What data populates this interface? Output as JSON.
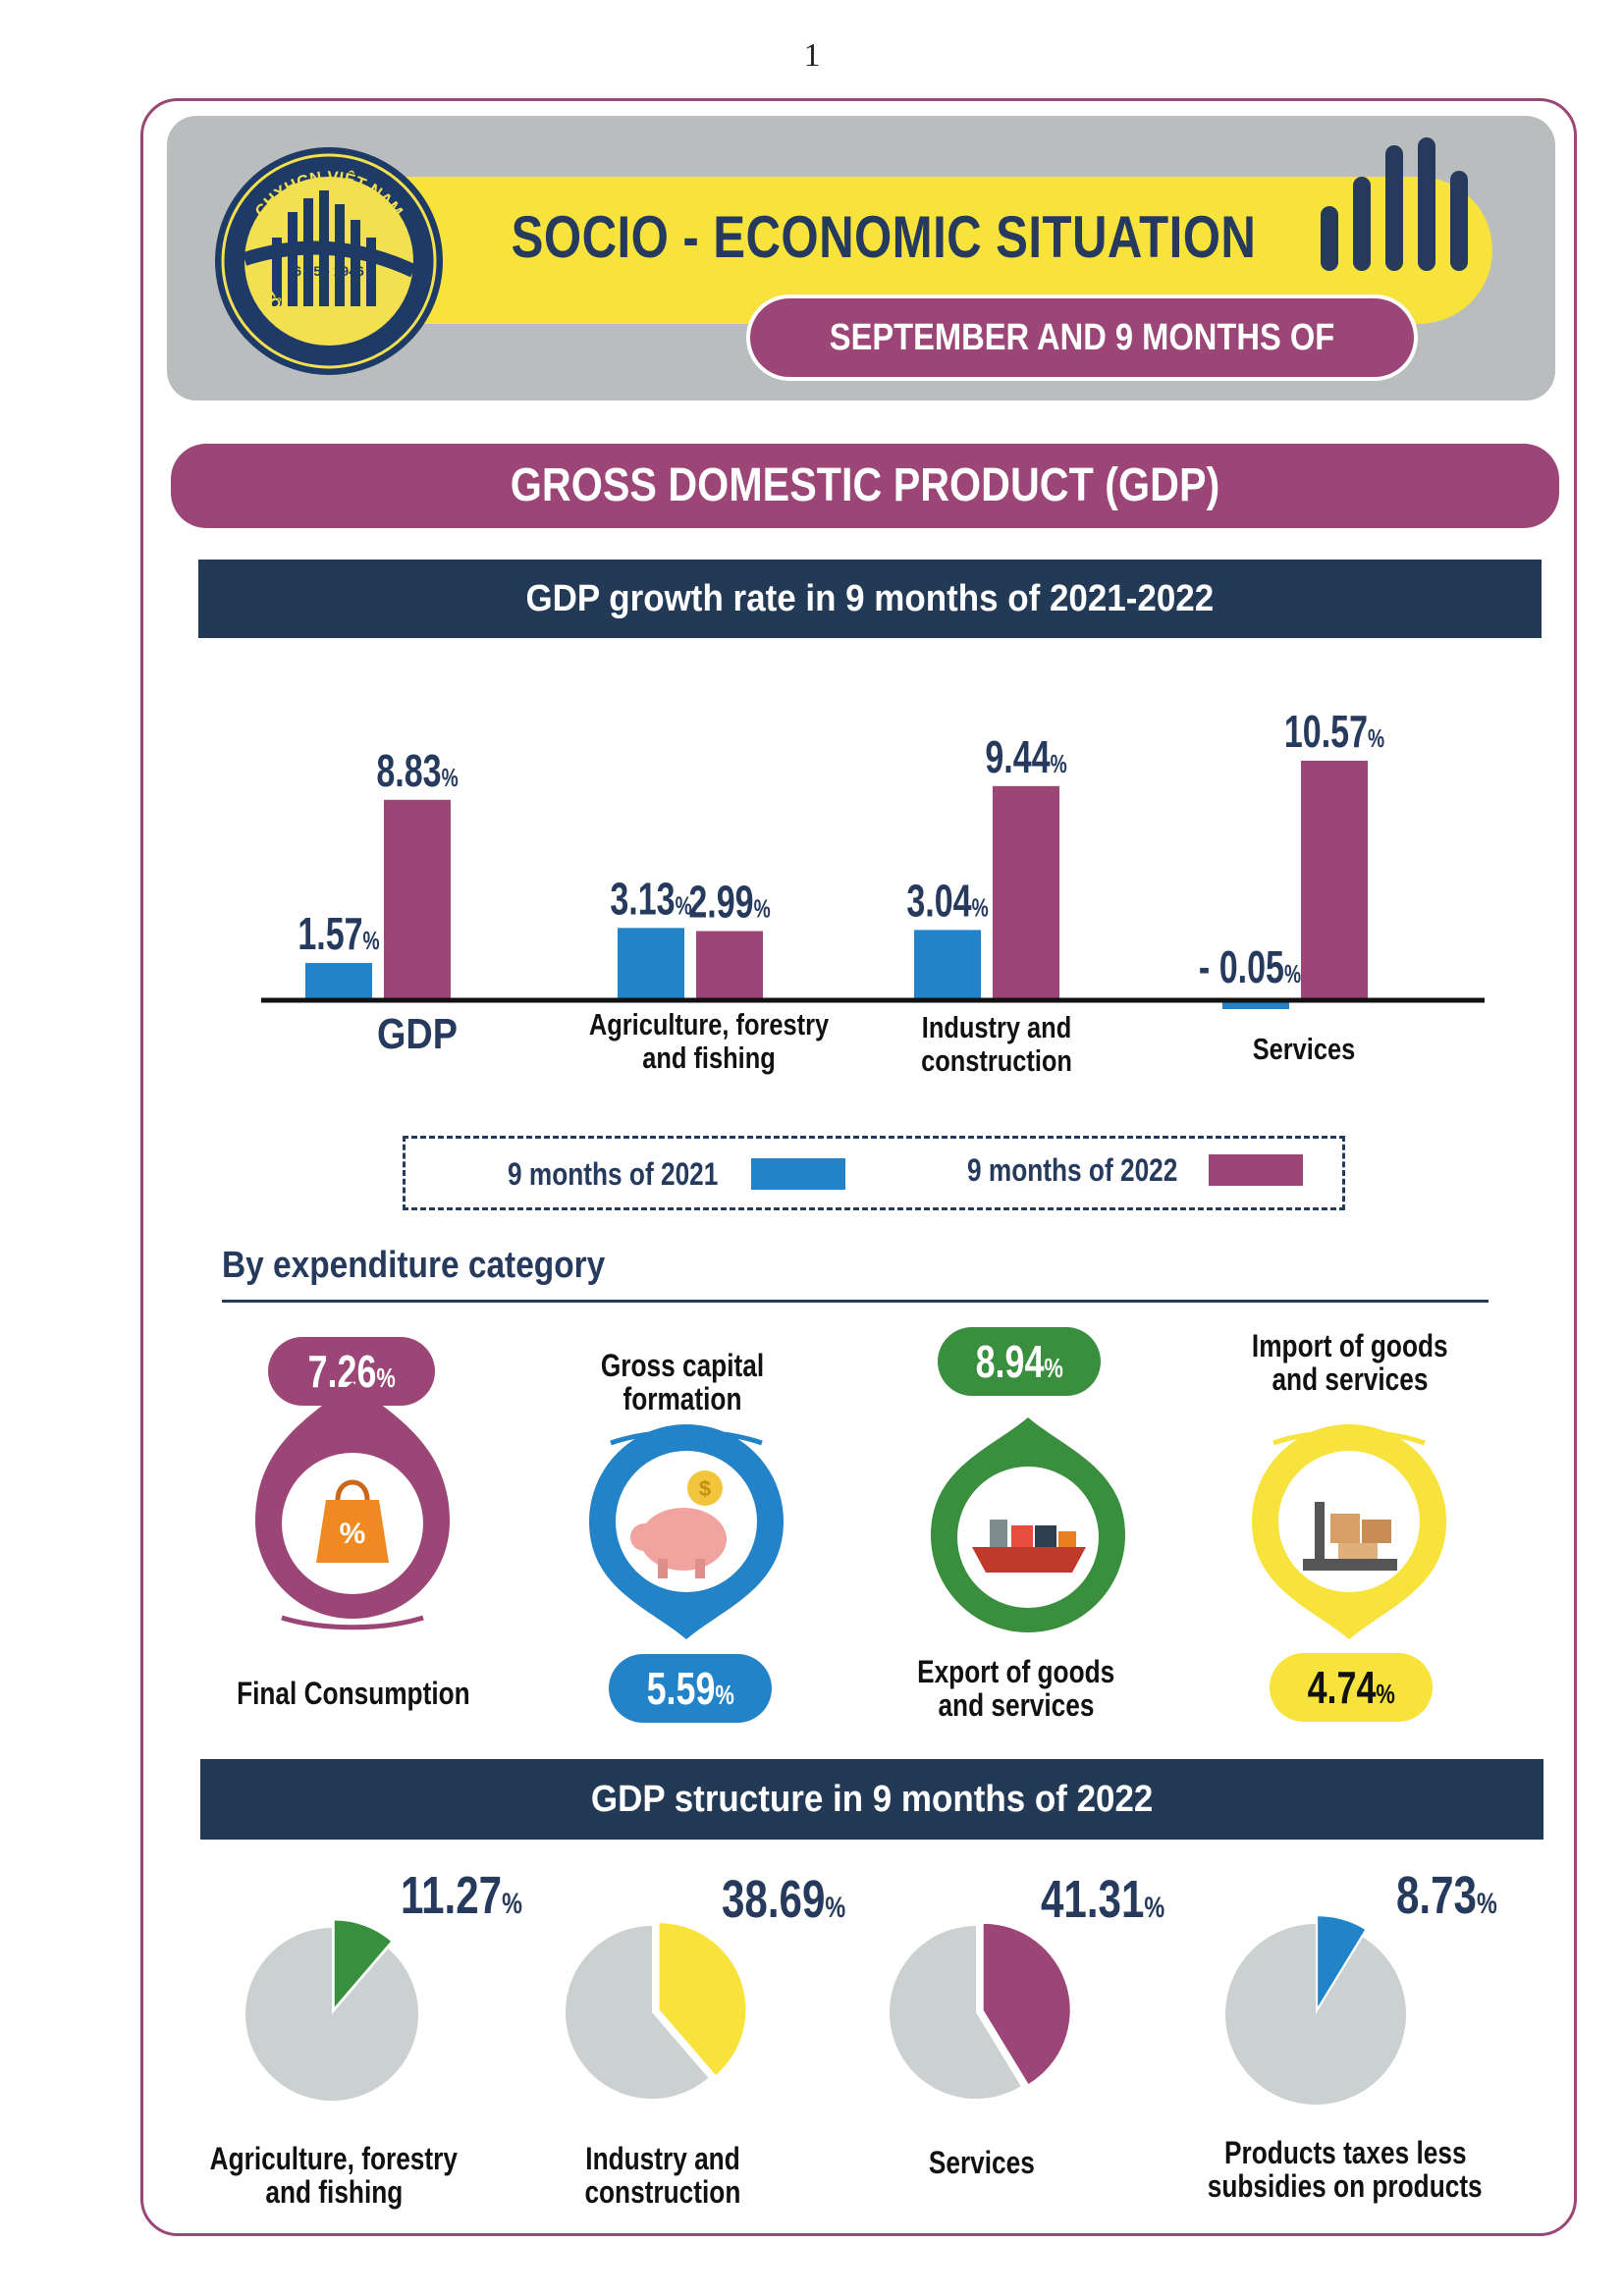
{
  "page_number": "1",
  "header": {
    "logo_top_text": "CHXHCN VIỆT NAM",
    "logo_date": "6 - 5 - 1946",
    "logo_bottom_text": "TỔNG CỤC THỐNG KÊ",
    "title": "SOCIO - ECONOMIC SITUATION",
    "subtitle": "SEPTEMBER AND 9 MONTHS OF 2022",
    "icon": "bar-chart-icon"
  },
  "section_title": "GROSS DOMESTIC PRODUCT (GDP)",
  "growth": {
    "title": "GDP growth rate in 9 months of 2021-2022",
    "legend": [
      "9 months of 2021",
      "9 months of 2022"
    ]
  },
  "chart_data": [
    {
      "type": "bar",
      "title": "GDP growth rate in 9 months of 2021-2022",
      "categories": [
        "GDP",
        "Agriculture, forestry and fishing",
        "Industry and construction",
        "Services"
      ],
      "series": [
        {
          "name": "9 months of 2021",
          "values": [
            1.57,
            3.13,
            3.04,
            -0.05
          ],
          "labels": [
            "1.57",
            "3.13",
            "3.04",
            "- 0.05"
          ],
          "color": "#2383c8"
        },
        {
          "name": "9 months of 2022",
          "values": [
            8.83,
            2.99,
            9.44,
            10.57
          ],
          "labels": [
            "8.83",
            "2.99",
            "9.44",
            "10.57"
          ],
          "color": "#9b4676"
        }
      ],
      "unit": "%",
      "ylim": [
        -0.5,
        12
      ],
      "legend": "bottom",
      "grid": false
    },
    {
      "type": "pie",
      "title": "GDP structure in 9 months of 2022",
      "slices": [
        {
          "category": "Agriculture, forestry and fishing",
          "value": 11.27,
          "label": "11.27",
          "color": "#3a8f3e"
        },
        {
          "category": "Industry and construction",
          "value": 38.69,
          "label": "38.69",
          "color": "#f7e33c"
        },
        {
          "category": "Services",
          "value": 41.31,
          "label": "41.31",
          "color": "#9b4676"
        },
        {
          "category": "Products taxes less subsidies on products",
          "value": 8.73,
          "label": "8.73",
          "color": "#2383c8"
        }
      ],
      "unit": "%"
    }
  ],
  "category_labels": {
    "gdp": "GDP",
    "agri_1": "Agriculture, forestry",
    "agri_2": "and fishing",
    "ind_1": "Industry and",
    "ind_2": "construction",
    "services": "Services"
  },
  "expenditure": {
    "title": "By expenditure category",
    "items": [
      {
        "label": "Final Consumption",
        "value": "7.26",
        "unit": "%",
        "color": "#9b4676",
        "icon": "shopping-bag-icon"
      },
      {
        "label": "Gross capital formation",
        "value": "5.59",
        "unit": "%",
        "color": "#2383c8",
        "icon": "piggy-bank-icon"
      },
      {
        "label_1": "Export of goods",
        "label_2": "and services",
        "value": "8.94",
        "unit": "%",
        "color": "#3a8f3e",
        "icon": "cargo-ship-icon"
      },
      {
        "label_1": "Import of goods",
        "label_2": "and services",
        "value": "4.74",
        "unit": "%",
        "color": "#f7e33c",
        "icon": "scale-boxes-icon"
      }
    ]
  },
  "structure": {
    "title": "GDP structure in 9 months of 2022",
    "labels": [
      [
        "Agriculture, forestry",
        "and fishing"
      ],
      [
        "Industry and",
        "construction"
      ],
      [
        "Services"
      ],
      [
        "Products taxes less",
        "subsidies on products"
      ]
    ]
  }
}
